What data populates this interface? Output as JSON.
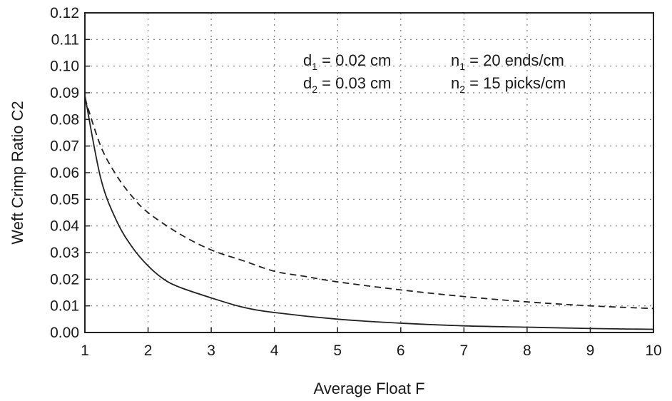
{
  "chart_data": {
    "type": "line",
    "title": "",
    "xlabel": "Average Float F",
    "ylabel": "Weft Crimp Ratio C2",
    "xlim": [
      1,
      10
    ],
    "ylim": [
      0,
      0.12
    ],
    "x_ticks": [
      "1",
      "2",
      "3",
      "4",
      "5",
      "6",
      "7",
      "8",
      "9",
      "10"
    ],
    "y_ticks": [
      "0.00",
      "0.01",
      "0.02",
      "0.03",
      "0.04",
      "0.05",
      "0.06",
      "0.07",
      "0.08",
      "0.09",
      "0.10",
      "0.11",
      "0.12"
    ],
    "grid": true,
    "legend": "none",
    "annotations": {
      "d1": {
        "base": "d",
        "sub": "1",
        "value": " = 0.02 cm"
      },
      "n1": {
        "base": "n",
        "sub": "1",
        "value": " = 20 ends/cm"
      },
      "d2": {
        "base": "d",
        "sub": "2",
        "value": " = 0.03 cm"
      },
      "n2": {
        "base": "n",
        "sub": "2",
        "value": " = 15 picks/cm"
      }
    },
    "series": [
      {
        "style": "solid",
        "color": "#222222",
        "x": [
          1.0,
          1.25,
          1.5,
          1.75,
          2.0,
          2.25,
          2.5,
          3.0,
          3.5,
          4.0,
          5.0,
          6.0,
          7.0,
          8.0,
          9.0,
          10.0
        ],
        "y": [
          0.089,
          0.058,
          0.042,
          0.032,
          0.025,
          0.02,
          0.017,
          0.013,
          0.0095,
          0.0075,
          0.005,
          0.0035,
          0.0025,
          0.002,
          0.0015,
          0.0012
        ]
      },
      {
        "style": "dashed",
        "color": "#222222",
        "x": [
          1.0,
          1.25,
          1.5,
          1.75,
          2.0,
          2.5,
          3.0,
          3.5,
          4.0,
          4.5,
          5.0,
          6.0,
          7.0,
          8.0,
          9.0,
          10.0
        ],
        "y": [
          0.088,
          0.07,
          0.059,
          0.051,
          0.045,
          0.037,
          0.031,
          0.027,
          0.023,
          0.021,
          0.019,
          0.016,
          0.0135,
          0.0115,
          0.01,
          0.009
        ]
      }
    ]
  }
}
